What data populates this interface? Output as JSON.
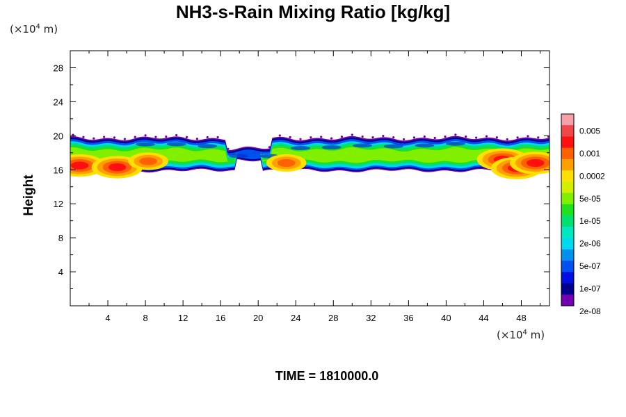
{
  "chart_data": {
    "type": "heatmap",
    "title": "NH3-s-Rain Mixing Ratio [kg/kg]",
    "xlabel": "",
    "ylabel": "Height",
    "x_unit": "(×10",
    "x_unit_exp": "4",
    "x_unit_suffix": " m)",
    "y_unit": "(×10",
    "y_unit_exp": "4",
    "y_unit_suffix": " m)",
    "xlim": [
      0,
      51
    ],
    "ylim": [
      0,
      30
    ],
    "xticks": [
      4,
      8,
      12,
      16,
      20,
      24,
      28,
      32,
      36,
      40,
      44,
      48
    ],
    "xtick_labels": [
      "4",
      "8",
      "12",
      "16",
      "20",
      "24",
      "28",
      "32",
      "36",
      "40",
      "44",
      "48"
    ],
    "yticks": [
      4,
      8,
      12,
      16,
      20,
      24,
      28
    ],
    "ytick_labels": [
      "4",
      "8",
      "12",
      "16",
      "20",
      "24",
      "28"
    ],
    "colorbar": {
      "colors": [
        "#f5a0a8",
        "#f04848",
        "#ff1010",
        "#ff6000",
        "#ffa000",
        "#ffe000",
        "#d0f000",
        "#80f000",
        "#20e020",
        "#00e070",
        "#00e8c0",
        "#00d8f0",
        "#0090f0",
        "#0050f0",
        "#0010e0",
        "#000090",
        "#7000b0"
      ],
      "labels": [
        "0.005",
        "0.001",
        "0.0002",
        "5e-05",
        "1e-05",
        "2e-06",
        "5e-07",
        "1e-07",
        "2e-08"
      ]
    },
    "field_band": {
      "y_bottom": 15.5,
      "y_top": 20,
      "gap_x": [
        17.5,
        20.5
      ],
      "hot_spots": [
        {
          "x": 1,
          "y": 16.5,
          "level": "red"
        },
        {
          "x": 5,
          "y": 16.3,
          "level": "red"
        },
        {
          "x": 8.3,
          "y": 17,
          "level": "orange"
        },
        {
          "x": 23,
          "y": 16.8,
          "level": "orange"
        },
        {
          "x": 46,
          "y": 17.2,
          "level": "red"
        },
        {
          "x": 47.5,
          "y": 16.2,
          "level": "red"
        },
        {
          "x": 49.5,
          "y": 16.8,
          "level": "red"
        }
      ]
    }
  },
  "time_label": "TIME = 1810000.0"
}
